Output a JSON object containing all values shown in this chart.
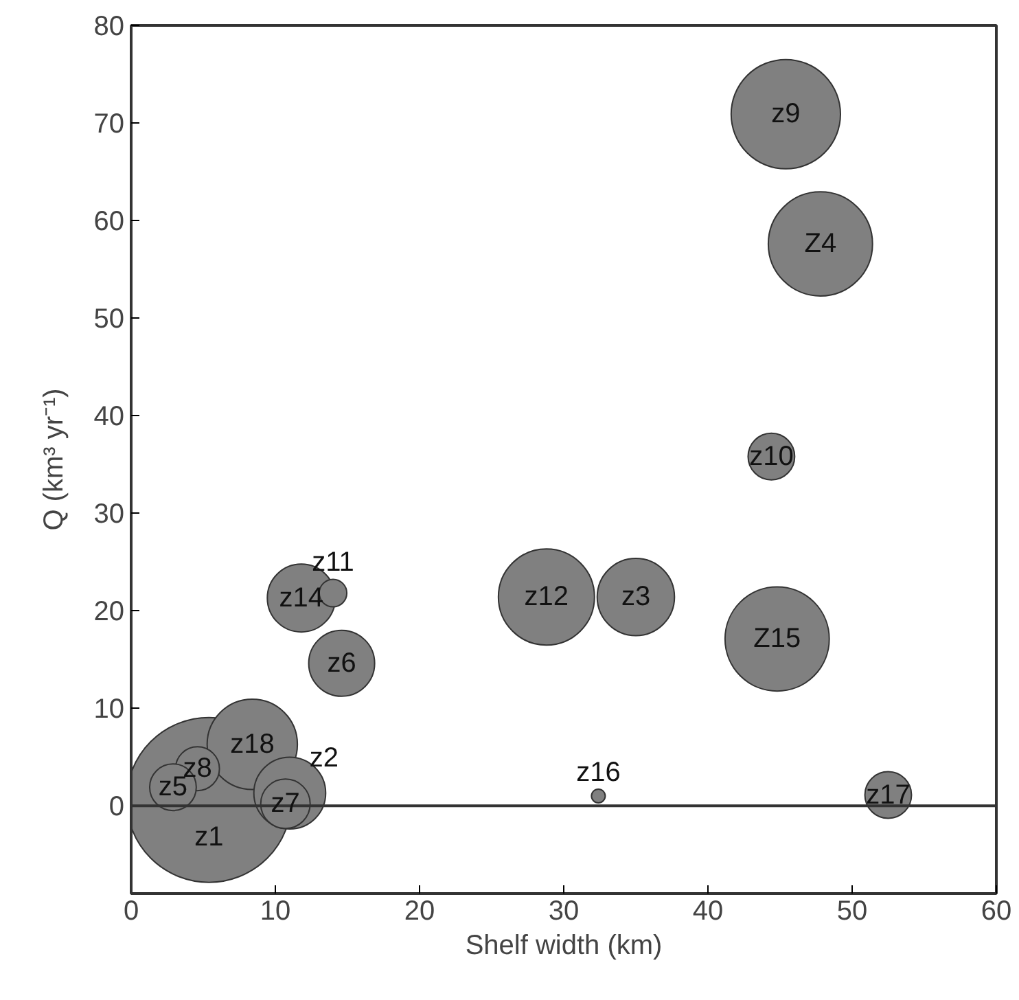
{
  "chart_data": {
    "type": "bubble",
    "xlabel": "Shelf width (km)",
    "ylabel": "Q (km³ yr⁻¹)",
    "xlim": [
      0,
      60
    ],
    "ylim": [
      -9,
      80
    ],
    "ref_lines": [
      {
        "axis": "y",
        "value": 0,
        "color": "#333333"
      }
    ],
    "xticks": [
      0,
      10,
      20,
      30,
      40,
      50,
      60
    ],
    "yticks": [
      0,
      10,
      20,
      30,
      40,
      50,
      60,
      70,
      80
    ],
    "grid": false,
    "legend": false,
    "series": [
      {
        "name": "z1",
        "color": "#808080",
        "x": [
          5.4
        ],
        "values": [
          0.6
        ],
        "sizes": [
          1
        ]
      },
      {
        "name": "z18",
        "color": "#808080",
        "x": [
          8.4
        ],
        "values": [
          6.3
        ],
        "sizes": [
          0.3
        ]
      },
      {
        "name": "z8",
        "color": "#808080",
        "x": [
          4.6
        ],
        "values": [
          3.8
        ],
        "sizes": [
          0.071
        ]
      },
      {
        "name": "z5",
        "color": "#808080",
        "x": [
          2.9
        ],
        "values": [
          1.9
        ],
        "sizes": [
          0.08
        ]
      },
      {
        "name": "z2",
        "color": "#808080",
        "x": [
          11.0
        ],
        "values": [
          1.3
        ],
        "sizes": [
          0.19
        ]
      },
      {
        "name": "z7",
        "color": "#808080",
        "x": [
          10.7
        ],
        "values": [
          0.2
        ],
        "sizes": [
          0.09
        ]
      },
      {
        "name": "z14",
        "color": "#808080",
        "x": [
          11.8
        ],
        "values": [
          21.3
        ],
        "sizes": [
          0.17
        ]
      },
      {
        "name": "z11",
        "color": "#808080",
        "x": [
          14.0
        ],
        "values": [
          21.8
        ],
        "sizes": [
          0.028
        ]
      },
      {
        "name": "z6",
        "color": "#808080",
        "x": [
          14.6
        ],
        "values": [
          14.6
        ],
        "sizes": [
          0.16
        ]
      },
      {
        "name": "z12",
        "color": "#808080",
        "x": [
          28.8
        ],
        "values": [
          21.4
        ],
        "sizes": [
          0.34
        ]
      },
      {
        "name": "z3",
        "color": "#808080",
        "x": [
          35.0
        ],
        "values": [
          21.4
        ],
        "sizes": [
          0.22
        ]
      },
      {
        "name": "Z15",
        "color": "#808080",
        "x": [
          44.8
        ],
        "values": [
          17.1
        ],
        "sizes": [
          0.4
        ]
      },
      {
        "name": "z16",
        "color": "#808080",
        "x": [
          32.4
        ],
        "values": [
          1.0
        ],
        "sizes": [
          0.007
        ]
      },
      {
        "name": "z17",
        "color": "#808080",
        "x": [
          52.5
        ],
        "values": [
          1.1
        ],
        "sizes": [
          0.08
        ]
      },
      {
        "name": "z10",
        "color": "#808080",
        "x": [
          44.4
        ],
        "values": [
          35.8
        ],
        "sizes": [
          0.08
        ]
      },
      {
        "name": "z9",
        "color": "#808080",
        "x": [
          45.4
        ],
        "values": [
          70.9
        ],
        "sizes": [
          0.44
        ]
      },
      {
        "name": "Z4",
        "color": "#808080",
        "x": [
          47.8
        ],
        "values": [
          57.6
        ],
        "sizes": [
          0.4
        ]
      }
    ]
  }
}
